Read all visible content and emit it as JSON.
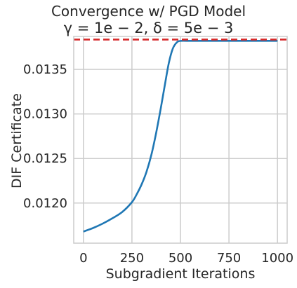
{
  "chart_data": {
    "type": "line",
    "title": "Convergence w/ PGD Model",
    "subtitle": "γ = 1e − 2, δ = 5e − 3",
    "xlabel": "Subgradient Iterations",
    "ylabel": "DIF Certificate",
    "xlim": [
      -50,
      1050
    ],
    "ylim": [
      0.01155,
      0.01387
    ],
    "x_ticks": [
      0,
      250,
      500,
      750,
      1000
    ],
    "x_tick_labels": [
      "0",
      "250",
      "500",
      "750",
      "1000"
    ],
    "y_ticks": [
      0.012,
      0.0125,
      0.013,
      0.0135
    ],
    "y_tick_labels": [
      "0.0120",
      "0.0125",
      "0.0130",
      "0.0135"
    ],
    "grid": true,
    "series": [
      {
        "color": "#1f77b4",
        "x": [
          0,
          50,
          100,
          150,
          200,
          250,
          275,
          300,
          325,
          350,
          375,
          400,
          420,
          440,
          460,
          480,
          500,
          550,
          600,
          700,
          800,
          900,
          1000
        ],
        "y": [
          0.01168,
          0.01172,
          0.01177,
          0.01183,
          0.0119,
          0.01201,
          0.0121,
          0.01221,
          0.01235,
          0.01254,
          0.01279,
          0.01308,
          0.01333,
          0.01357,
          0.01373,
          0.0138,
          0.01382,
          0.01382,
          0.01382,
          0.01382,
          0.01382,
          0.01382,
          0.01382
        ]
      }
    ],
    "reference_line": {
      "y": 0.013835,
      "color": "#d62728",
      "style": "dashed"
    }
  }
}
